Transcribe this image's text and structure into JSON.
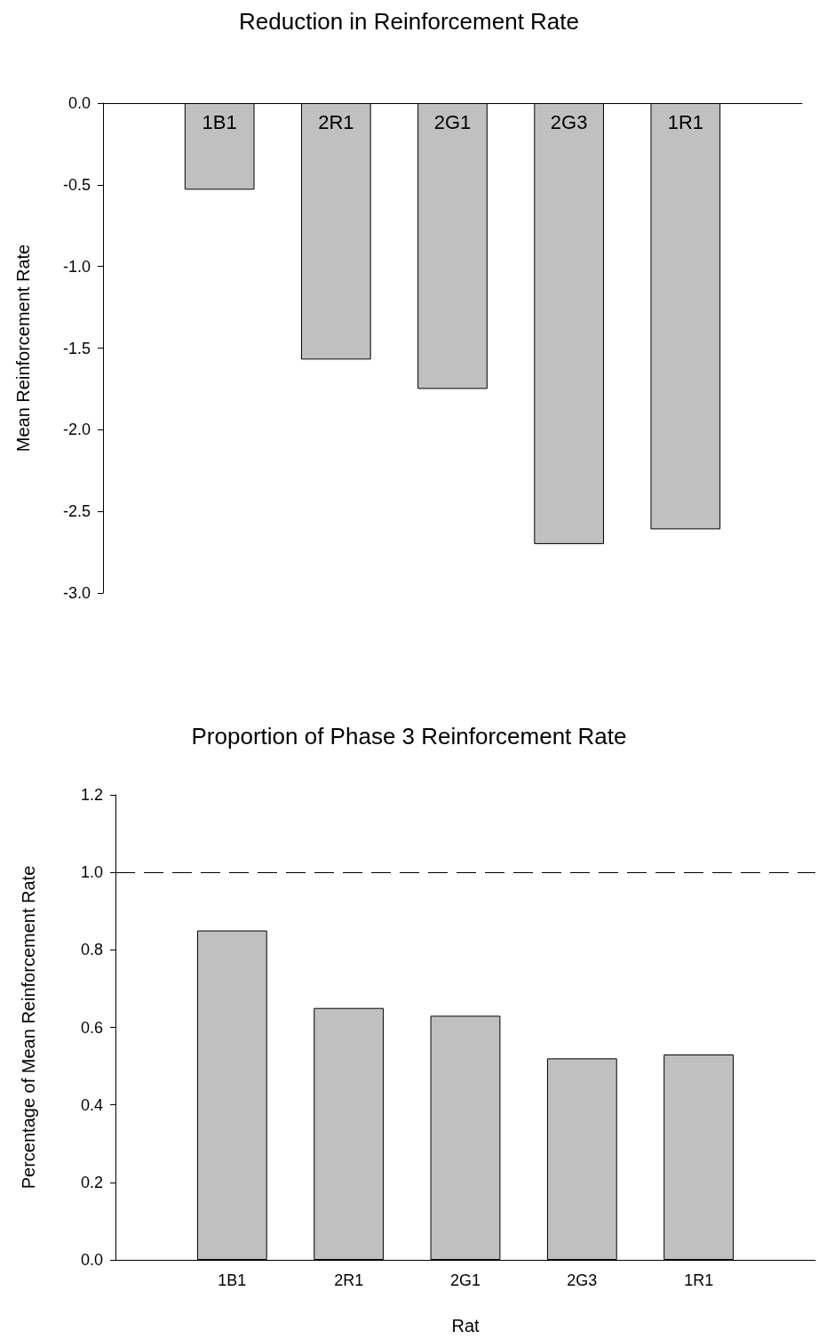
{
  "chart_data": [
    {
      "type": "bar",
      "title": "Reduction in Reinforcement Rate",
      "ylabel": "Mean Reinforcement Rate",
      "categories": [
        null,
        "1B1",
        "2R1",
        "2G1",
        "2G3",
        "1R1",
        null
      ],
      "values": [
        null,
        -0.53,
        -1.57,
        -1.75,
        -2.7,
        -2.61,
        null
      ],
      "color": "#c0c0c0",
      "ylim": [
        -3,
        0
      ],
      "yticks": [
        {
          "value": -3,
          "label": "-3.0"
        },
        {
          "value": -2.5,
          "label": "-2.5"
        },
        {
          "value": -2,
          "label": "-2.0"
        },
        {
          "value": -1.5,
          "label": "-1.5"
        },
        {
          "value": -1,
          "label": "-1.0"
        },
        {
          "value": -0.5,
          "label": "-0.5"
        },
        {
          "value": 0,
          "label": "0.0"
        }
      ]
    },
    {
      "type": "bar",
      "title": "Proportion of Phase 3 Reinforcement Rate",
      "xlabel": "Rat",
      "ylabel": "Percentage of Mean Reinforcement Rate",
      "categories": [
        null,
        "1B1",
        "2R1",
        "2G1",
        "2G3",
        "1R1",
        null
      ],
      "values": [
        null,
        0.85,
        0.65,
        0.63,
        0.52,
        0.53,
        null
      ],
      "color": "#c0c0c0",
      "ylim": [
        0,
        1.2
      ],
      "yticks": [
        {
          "value": 0,
          "label": "0.0"
        },
        {
          "value": 0.2,
          "label": "0.2"
        },
        {
          "value": 0.4,
          "label": "0.4"
        },
        {
          "value": 0.6,
          "label": "0.6"
        },
        {
          "value": 0.8,
          "label": "0.8"
        },
        {
          "value": 1,
          "label": "1.0"
        },
        {
          "value": 1.2,
          "label": "1.2"
        }
      ],
      "ref_lines": [
        {
          "axis": "y",
          "value": 1,
          "line_style": "dashed",
          "color": "#000000"
        }
      ]
    }
  ]
}
